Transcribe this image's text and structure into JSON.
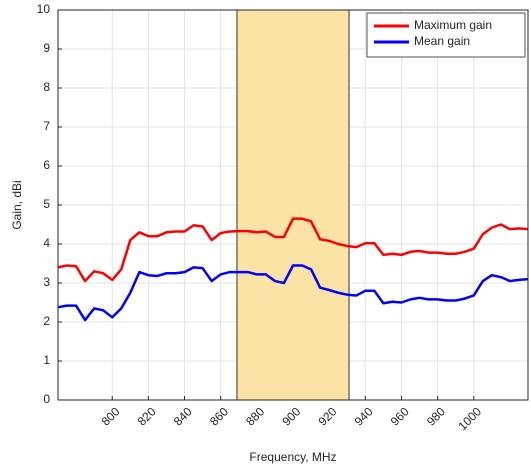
{
  "chart_data": {
    "type": "line",
    "xlabel": "Frequency, MHz",
    "ylabel": "Gain, dBi",
    "x": [
      770,
      775,
      780,
      785,
      790,
      795,
      800,
      805,
      810,
      815,
      820,
      825,
      830,
      835,
      840,
      845,
      850,
      855,
      860,
      865,
      870,
      875,
      880,
      885,
      890,
      895,
      900,
      905,
      910,
      915,
      920,
      925,
      930,
      935,
      940,
      945,
      950,
      955,
      960,
      965,
      970,
      975,
      980,
      985,
      990,
      995,
      1000,
      1005,
      1010,
      1015,
      1020,
      1025,
      1030
    ],
    "series": [
      {
        "name": "Maximum gain",
        "color": "#ff0000",
        "values": [
          3.4,
          3.45,
          3.43,
          3.05,
          3.3,
          3.25,
          3.08,
          3.35,
          4.1,
          4.3,
          4.2,
          4.2,
          4.3,
          4.32,
          4.32,
          4.48,
          4.45,
          4.1,
          4.28,
          4.32,
          4.33,
          4.33,
          4.3,
          4.32,
          4.18,
          4.18,
          4.65,
          4.65,
          4.58,
          4.12,
          4.08,
          4.0,
          3.95,
          3.92,
          4.02,
          4.02,
          3.72,
          3.75,
          3.72,
          3.8,
          3.82,
          3.78,
          3.78,
          3.75,
          3.75,
          3.8,
          3.88,
          4.25,
          4.42,
          4.5,
          4.38,
          4.4,
          4.38
        ]
      },
      {
        "name": "Mean gain",
        "color": "#0000ff",
        "values": [
          2.38,
          2.42,
          2.42,
          2.05,
          2.35,
          2.3,
          2.12,
          2.35,
          2.75,
          3.28,
          3.2,
          3.18,
          3.25,
          3.25,
          3.28,
          3.4,
          3.38,
          3.05,
          3.22,
          3.28,
          3.28,
          3.28,
          3.22,
          3.22,
          3.05,
          3.0,
          3.45,
          3.45,
          3.35,
          2.88,
          2.82,
          2.75,
          2.7,
          2.68,
          2.8,
          2.8,
          2.48,
          2.52,
          2.5,
          2.58,
          2.62,
          2.58,
          2.58,
          2.55,
          2.55,
          2.6,
          2.68,
          3.05,
          3.2,
          3.15,
          3.05,
          3.08,
          3.1
        ]
      }
    ],
    "highlight": [
      869,
      931
    ],
    "highlight_color": "#fbe3a6",
    "xlim": [
      770,
      1030
    ],
    "xticks": [
      800,
      820,
      840,
      860,
      880,
      900,
      920,
      940,
      960,
      980,
      1000
    ],
    "ylim": [
      0,
      10
    ],
    "yticks": [
      0,
      1,
      2,
      3,
      4,
      5,
      6,
      7,
      8,
      9,
      10
    ],
    "grid": true,
    "legend": "upper right"
  }
}
